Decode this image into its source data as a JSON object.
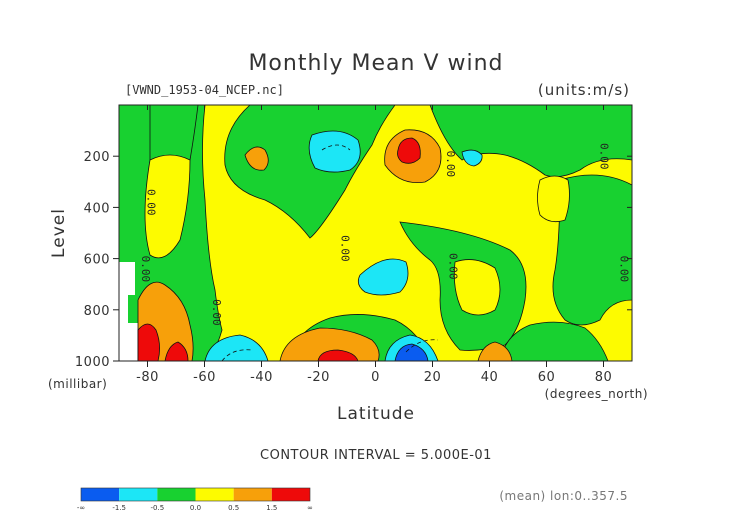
{
  "chart_data": {
    "type": "contour",
    "title": "Monthly Mean V wind",
    "dataset_label": "[VWND_1953-04_NCEP.nc]",
    "units_label": "(units:m/s)",
    "xlabel": "Latitude",
    "xunit": "(degrees_north)",
    "ylabel": "Level",
    "yunit": "(millibar)",
    "xlim": [
      -90,
      90
    ],
    "ylim": [
      1000,
      0
    ],
    "xticks": [
      -80,
      -60,
      -40,
      -20,
      0,
      20,
      40,
      60,
      80
    ],
    "yticks": [
      200,
      400,
      600,
      800,
      1000
    ],
    "contour_interval_text": "CONTOUR INTERVAL = 5.000E-01",
    "footer_text": "(mean) lon:0..357.5",
    "contour_labels": [
      {
        "text": "0.00",
        "x": -80,
        "y": 380
      },
      {
        "text": "0.00",
        "x": -82,
        "y": 640
      },
      {
        "text": "0.00",
        "x": -57,
        "y": 810
      },
      {
        "text": "0.00",
        "x": -12,
        "y": 560
      },
      {
        "text": "0.00",
        "x": 25,
        "y": 230
      },
      {
        "text": "0.00",
        "x": 26,
        "y": 630
      },
      {
        "text": "0.00",
        "x": 79,
        "y": 200
      },
      {
        "text": "0.00",
        "x": 86,
        "y": 640
      }
    ],
    "colorbar": {
      "colors": [
        "#0a5cf0",
        "#1ce6f6",
        "#18d130",
        "#fdfb00",
        "#f7a00a",
        "#ee0a0a"
      ],
      "labels": [
        "-∞",
        "-1.5",
        "-0.5",
        "0.0",
        "0.5",
        "1.5",
        "∞"
      ]
    }
  }
}
